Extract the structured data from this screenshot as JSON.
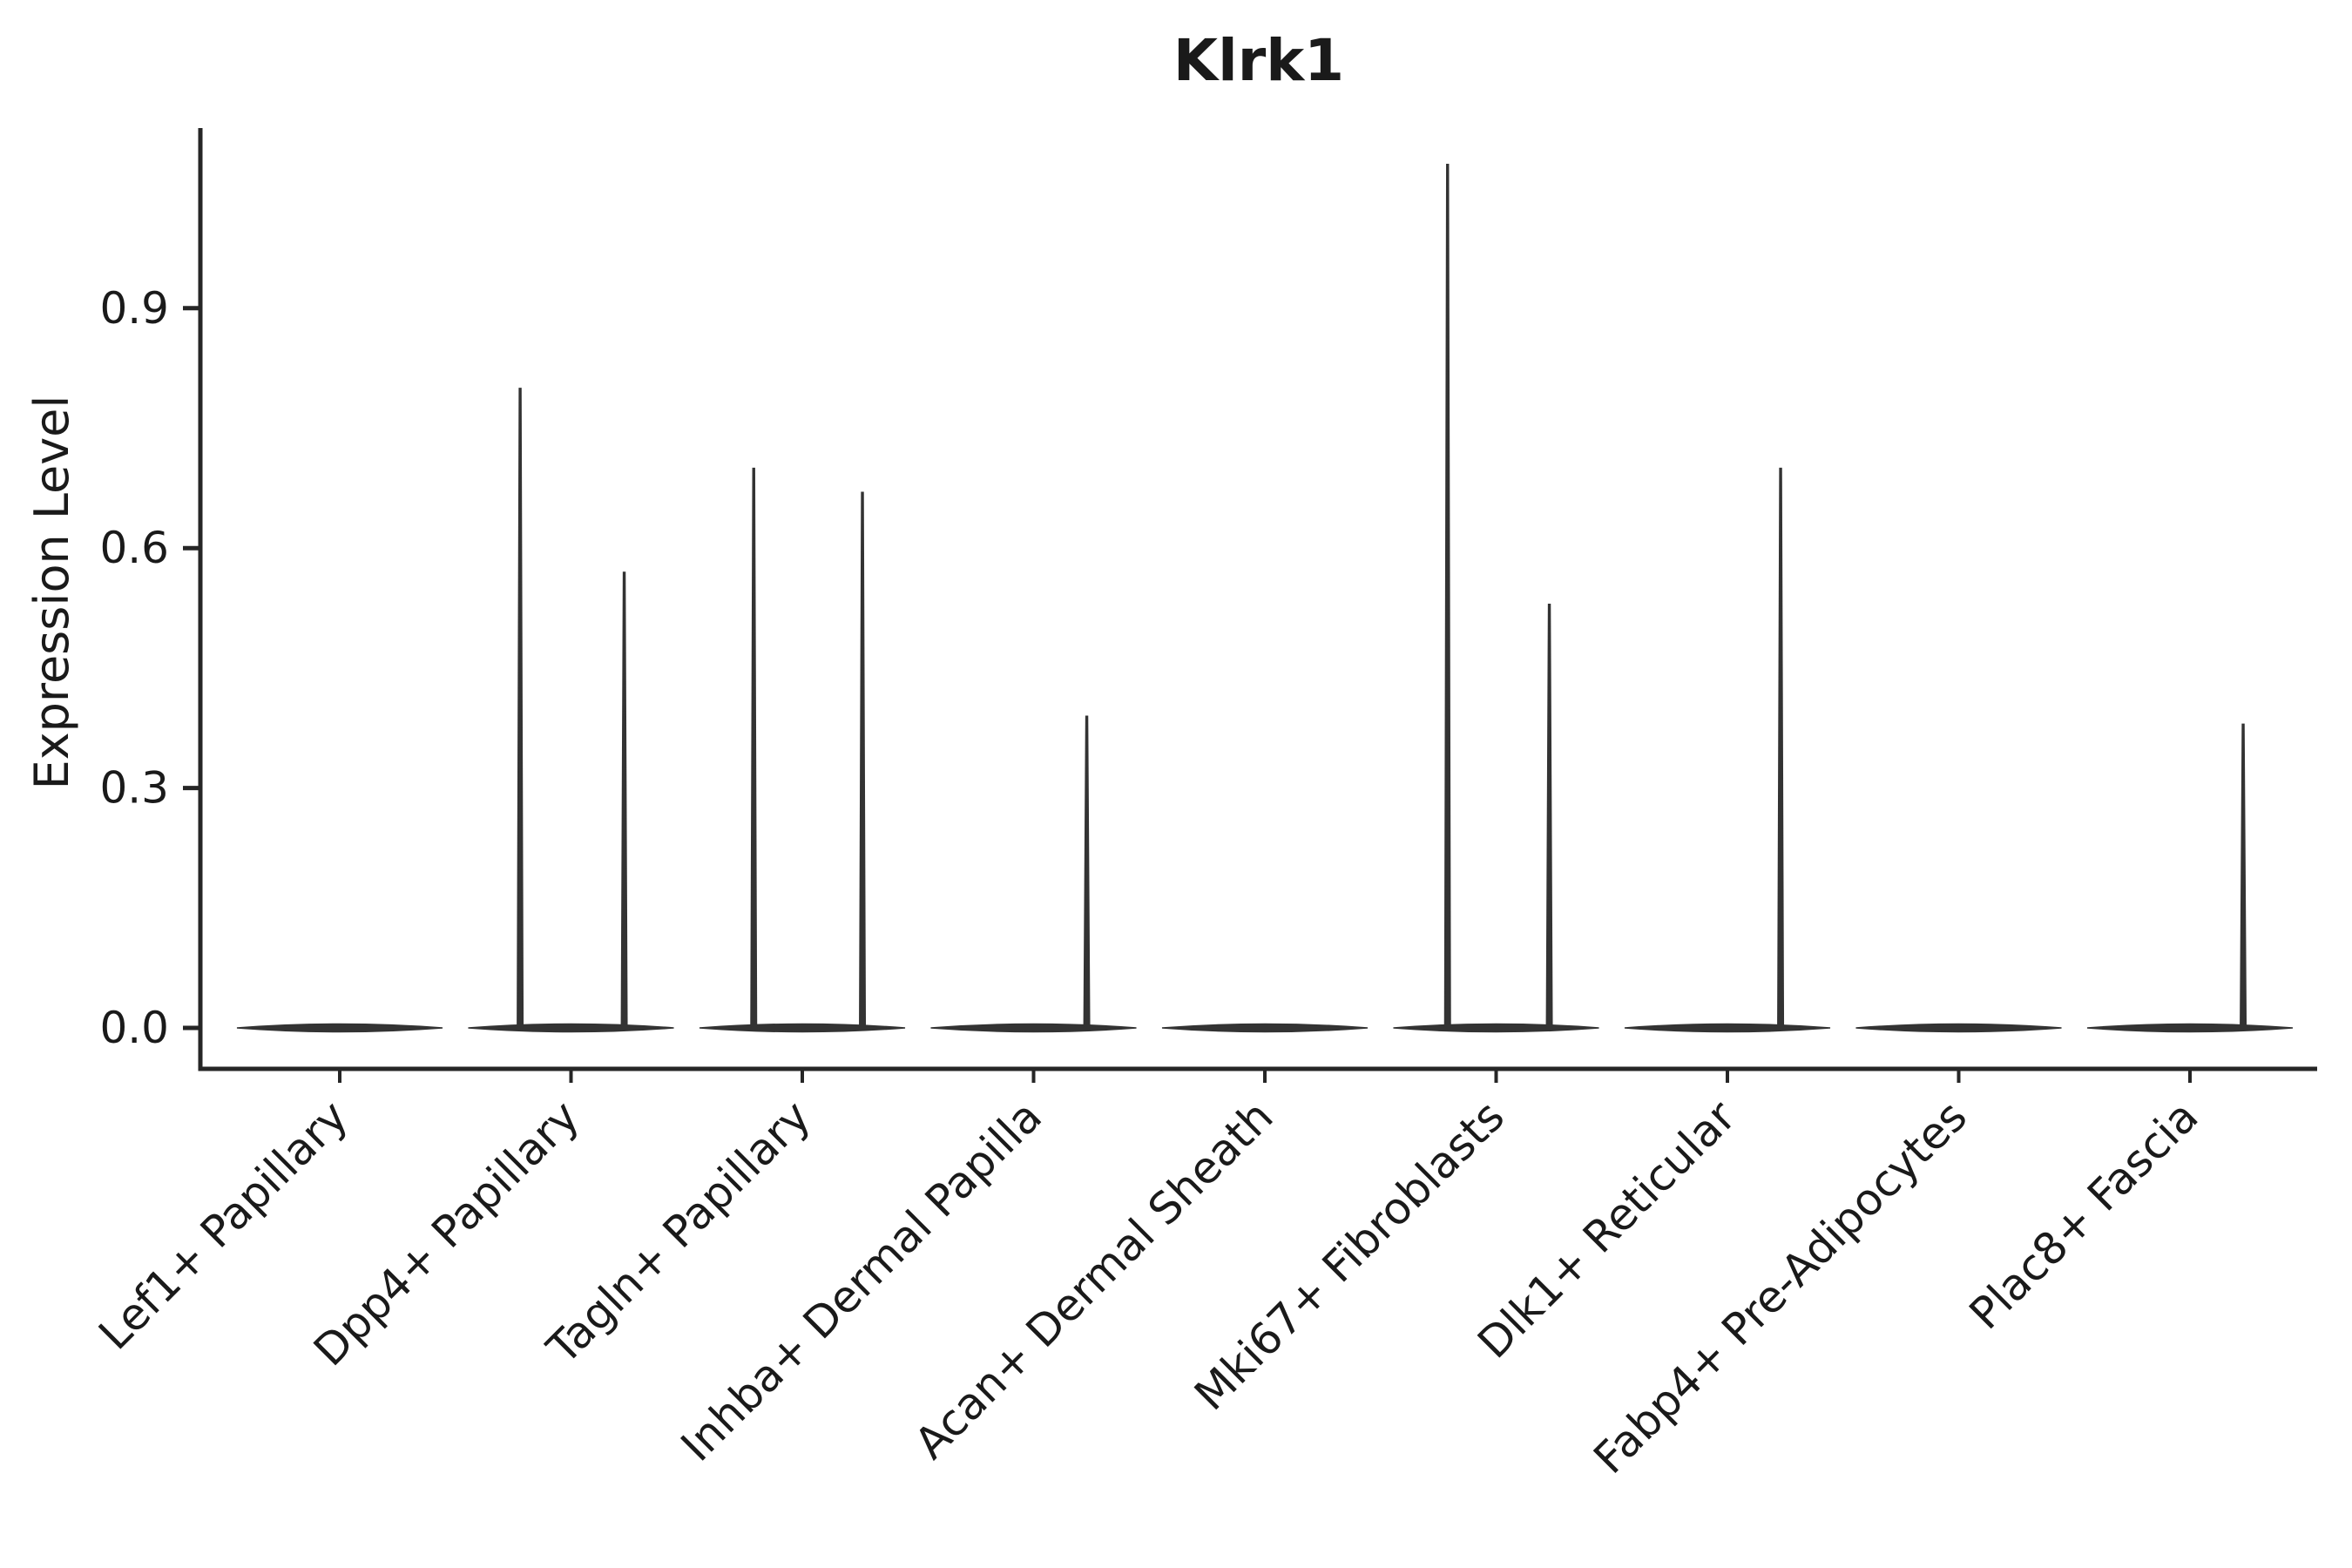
{
  "page": {
    "background": "#ffffff"
  },
  "chart_data": {
    "type": "violin",
    "title": "Klrk1",
    "ylabel": "Expression Level",
    "xlabel": "",
    "ylim": [
      -0.05,
      1.12
    ],
    "grid": false,
    "legend": "none",
    "ink_color": "#262626",
    "violin_color": "#333333",
    "yticks": [
      {
        "label": "0.0",
        "value": 0.0
      },
      {
        "label": "0.3",
        "value": 0.3
      },
      {
        "label": "0.6",
        "value": 0.6
      },
      {
        "label": "0.9",
        "value": 0.9
      }
    ],
    "categories": [
      "Lef1+ Papillary",
      "Dpp4+ Papillary",
      "Tagln+ Papillary",
      "Inhba+ Dermal Papilla",
      "Acan+ Dermal Sheath",
      "Mki67+ Fibroblasts",
      "Dlk1+ Reticular",
      "Fabp4+ Pre-Adipocytes",
      "Plac8+ Fascia"
    ],
    "series": [
      {
        "category": "Lef1+ Papillary",
        "baseline": 0.0,
        "spikes": []
      },
      {
        "category": "Dpp4+ Papillary",
        "baseline": 0.0,
        "spikes": [
          {
            "pos": -0.22,
            "max": 0.8
          },
          {
            "pos": 0.23,
            "max": 0.57
          }
        ]
      },
      {
        "category": "Tagln+ Papillary",
        "baseline": 0.0,
        "spikes": [
          {
            "pos": -0.21,
            "max": 0.7
          },
          {
            "pos": 0.26,
            "max": 0.67
          }
        ]
      },
      {
        "category": "Inhba+ Dermal Papilla",
        "baseline": 0.0,
        "spikes": [
          {
            "pos": 0.23,
            "max": 0.39
          }
        ]
      },
      {
        "category": "Acan+ Dermal Sheath",
        "baseline": 0.0,
        "spikes": []
      },
      {
        "category": "Mki67+ Fibroblasts",
        "baseline": 0.0,
        "spikes": [
          {
            "pos": -0.21,
            "max": 1.08
          },
          {
            "pos": 0.23,
            "max": 0.53
          }
        ]
      },
      {
        "category": "Dlk1+ Reticular",
        "baseline": 0.0,
        "spikes": [
          {
            "pos": 0.23,
            "max": 0.7
          }
        ]
      },
      {
        "category": "Fabp4+ Pre-Adipocytes",
        "baseline": 0.0,
        "spikes": []
      },
      {
        "category": "Plac8+ Fascia",
        "baseline": 0.0,
        "spikes": [
          {
            "pos": 0.23,
            "max": 0.38
          }
        ]
      }
    ]
  }
}
